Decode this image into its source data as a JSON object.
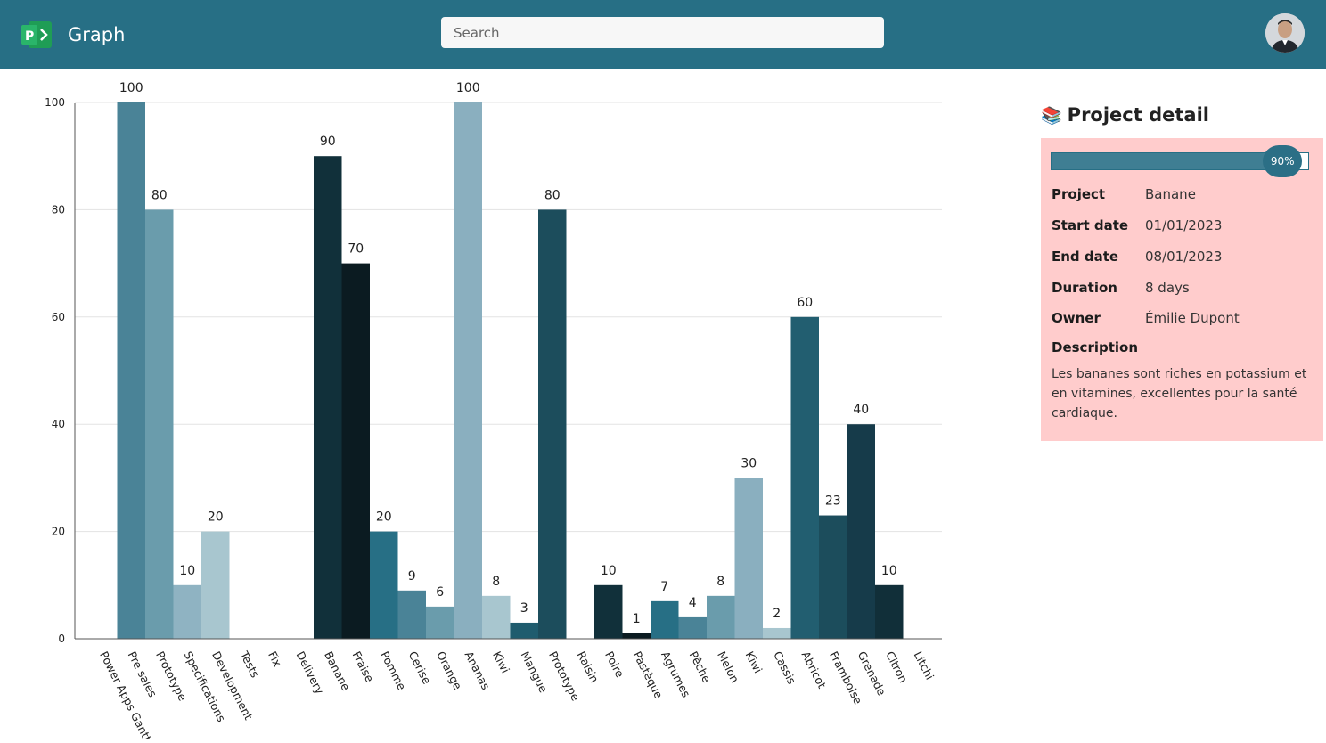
{
  "header": {
    "app_title": "Graph",
    "search_placeholder": "Search",
    "search_value": ""
  },
  "colors": {
    "header_bg": "#276f85",
    "card_bg": "#ffcccc",
    "progress": "#2b6f86"
  },
  "chart_data": {
    "type": "bar",
    "title": "",
    "xlabel": "",
    "ylabel": "",
    "ylim": [
      0,
      100
    ],
    "yticks": [
      0,
      20,
      40,
      60,
      80,
      100
    ],
    "grid": true,
    "legend": "none",
    "categories": [
      "Power Apps Gantt",
      "Pre sales",
      "Prototype",
      "Specifications",
      "Development",
      "Tests",
      "Fix",
      "Delivery",
      "Banane",
      "Fraise",
      "Pomme",
      "Cerise",
      "Orange",
      "Ananas",
      "Kiwi",
      "Mangue",
      "Prototype",
      "Raisin",
      "Poire",
      "Pastèque",
      "Agrumes",
      "Pêche",
      "Melon",
      "Kiwi",
      "Cassis",
      "Abricot",
      "Framboise",
      "Grenade",
      "Citron",
      "Litchi"
    ],
    "values": [
      null,
      100,
      80,
      10,
      20,
      null,
      null,
      null,
      90,
      70,
      20,
      9,
      6,
      100,
      8,
      3,
      80,
      null,
      10,
      1,
      7,
      4,
      8,
      30,
      2,
      60,
      23,
      40,
      10,
      null
    ],
    "bar_colors": [
      "#4a8397",
      "#4a8397",
      "#6a9cac",
      "#8fb3c2",
      "#a8c6cf",
      "#a8c6cf",
      "#a8c6cf",
      "#11303a",
      "#11303a",
      "#0b1b21",
      "#276f85",
      "#4a8397",
      "#6a9cac",
      "#8aafbf",
      "#a8c6cf",
      "#1f5c6e",
      "#1c4d5c",
      "#11303a",
      "#11303a",
      "#0b1b21",
      "#276f85",
      "#4a8397",
      "#6a9cac",
      "#8aafbf",
      "#a8c6cf",
      "#225e70",
      "#1c4d5c",
      "#163b4a",
      "#112f39",
      "#112f39"
    ]
  },
  "detail": {
    "title": "Project detail",
    "progress_percent": 90,
    "progress_label": "90%",
    "fields": [
      {
        "label": "Project",
        "value": "Banane"
      },
      {
        "label": "Start date",
        "value": "01/01/2023"
      },
      {
        "label": "End date",
        "value": "08/01/2023"
      },
      {
        "label": "Duration",
        "value": "8 days"
      },
      {
        "label": "Owner",
        "value": "Émilie Dupont"
      }
    ],
    "description_label": "Description",
    "description": "Les bananes sont riches en potassium et en vitamines, excellentes pour la santé cardiaque."
  }
}
